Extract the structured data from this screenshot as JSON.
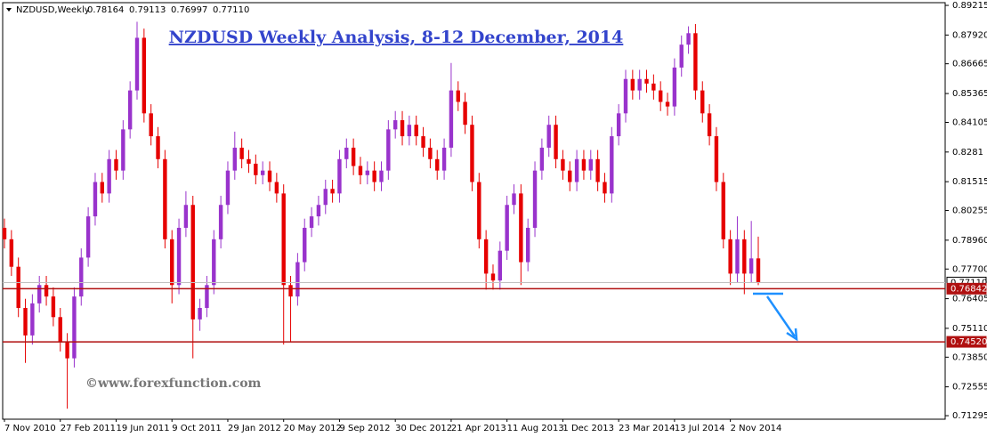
{
  "header": {
    "symbol": "NZDUSD,Weekly",
    "ohlc": [
      "0.78164",
      "0.79113",
      "0.76997",
      "0.77110"
    ]
  },
  "chart_data": {
    "type": "candlestick",
    "title": "NZDUSD Weekly Analysis, 8-12 December, 2014",
    "watermark": "©www.forexfunction.com",
    "up_color": "#9933cc",
    "down_color": "#e60000",
    "categories": [
      "7 Nov 2010",
      null,
      null,
      null,
      null,
      null,
      null,
      null,
      "27 Feb 2011",
      null,
      null,
      null,
      null,
      null,
      null,
      null,
      "19 Jun 2011",
      null,
      null,
      null,
      null,
      null,
      null,
      null,
      "9 Oct 2011",
      null,
      null,
      null,
      null,
      null,
      null,
      null,
      "29 Jan 2012",
      null,
      null,
      null,
      null,
      null,
      null,
      null,
      "20 May 2012",
      null,
      null,
      null,
      null,
      null,
      null,
      null,
      "9 Sep 2012",
      null,
      null,
      null,
      null,
      null,
      null,
      null,
      "30 Dec 2012",
      null,
      null,
      null,
      null,
      null,
      null,
      null,
      "21 Apr 2013",
      null,
      null,
      null,
      null,
      null,
      null,
      null,
      "11 Aug 2013",
      null,
      null,
      null,
      null,
      null,
      null,
      null,
      "1 Dec 2013",
      null,
      null,
      null,
      null,
      null,
      null,
      null,
      "23 Mar 2014",
      null,
      null,
      null,
      null,
      null,
      null,
      null,
      "13 Jul 2014",
      null,
      null,
      null,
      null,
      null,
      null,
      null,
      "2 Nov 2014",
      null,
      null,
      null,
      null
    ],
    "open": [
      0.795,
      0.79,
      0.778,
      0.76,
      0.748,
      0.762,
      0.77,
      0.765,
      0.756,
      0.745,
      0.738,
      0.765,
      0.782,
      0.8,
      0.815,
      0.81,
      0.825,
      0.82,
      0.838,
      0.855,
      0.878,
      0.845,
      0.835,
      0.825,
      0.79,
      0.77,
      0.795,
      0.805,
      0.755,
      0.76,
      0.77,
      0.79,
      0.805,
      0.82,
      0.83,
      0.825,
      0.823,
      0.818,
      0.82,
      0.815,
      0.81,
      0.77,
      0.765,
      0.78,
      0.795,
      0.8,
      0.805,
      0.812,
      0.81,
      0.825,
      0.83,
      0.822,
      0.818,
      0.82,
      0.815,
      0.82,
      0.838,
      0.842,
      0.835,
      0.84,
      0.835,
      0.83,
      0.825,
      0.82,
      0.83,
      0.855,
      0.85,
      0.84,
      0.815,
      0.79,
      0.775,
      0.772,
      0.785,
      0.805,
      0.81,
      0.78,
      0.795,
      0.82,
      0.83,
      0.84,
      0.825,
      0.82,
      0.815,
      0.825,
      0.82,
      0.825,
      0.815,
      0.81,
      0.835,
      0.845,
      0.86,
      0.855,
      0.86,
      0.858,
      0.855,
      0.85,
      0.848,
      0.865,
      0.875,
      0.88,
      0.855,
      0.845,
      0.835,
      0.815,
      0.79,
      0.775,
      0.79,
      0.775,
      0.78164
    ],
    "high": [
      0.799,
      0.794,
      0.782,
      0.764,
      0.766,
      0.774,
      0.774,
      0.769,
      0.76,
      0.749,
      0.769,
      0.786,
      0.804,
      0.819,
      0.819,
      0.829,
      0.829,
      0.842,
      0.859,
      0.885,
      0.882,
      0.849,
      0.839,
      0.829,
      0.794,
      0.799,
      0.811,
      0.809,
      0.764,
      0.774,
      0.794,
      0.809,
      0.824,
      0.837,
      0.834,
      0.829,
      0.827,
      0.824,
      0.824,
      0.819,
      0.814,
      0.774,
      0.784,
      0.799,
      0.804,
      0.809,
      0.816,
      0.816,
      0.829,
      0.834,
      0.834,
      0.826,
      0.824,
      0.824,
      0.824,
      0.842,
      0.846,
      0.846,
      0.844,
      0.844,
      0.839,
      0.834,
      0.829,
      0.834,
      0.867,
      0.859,
      0.854,
      0.844,
      0.819,
      0.794,
      0.779,
      0.789,
      0.809,
      0.814,
      0.814,
      0.799,
      0.824,
      0.834,
      0.844,
      0.844,
      0.829,
      0.824,
      0.829,
      0.829,
      0.829,
      0.829,
      0.819,
      0.839,
      0.849,
      0.864,
      0.864,
      0.864,
      0.864,
      0.862,
      0.859,
      0.854,
      0.869,
      0.879,
      0.883,
      0.884,
      0.859,
      0.849,
      0.839,
      0.819,
      0.794,
      0.8,
      0.794,
      0.798,
      0.79113
    ],
    "low": [
      0.786,
      0.774,
      0.756,
      0.736,
      0.744,
      0.758,
      0.761,
      0.752,
      0.741,
      0.716,
      0.734,
      0.761,
      0.778,
      0.796,
      0.806,
      0.806,
      0.816,
      0.816,
      0.834,
      0.851,
      0.841,
      0.831,
      0.821,
      0.786,
      0.762,
      0.766,
      0.791,
      0.738,
      0.75,
      0.756,
      0.766,
      0.786,
      0.801,
      0.816,
      0.821,
      0.819,
      0.814,
      0.814,
      0.811,
      0.806,
      0.744,
      0.745,
      0.761,
      0.776,
      0.791,
      0.796,
      0.801,
      0.806,
      0.806,
      0.821,
      0.818,
      0.814,
      0.814,
      0.811,
      0.811,
      0.816,
      0.834,
      0.831,
      0.831,
      0.831,
      0.826,
      0.821,
      0.816,
      0.816,
      0.826,
      0.846,
      0.836,
      0.811,
      0.786,
      0.768,
      0.768,
      0.768,
      0.781,
      0.801,
      0.77,
      0.776,
      0.791,
      0.816,
      0.826,
      0.821,
      0.816,
      0.811,
      0.811,
      0.816,
      0.816,
      0.811,
      0.806,
      0.806,
      0.831,
      0.841,
      0.851,
      0.851,
      0.854,
      0.851,
      0.846,
      0.844,
      0.844,
      0.861,
      0.871,
      0.851,
      0.841,
      0.831,
      0.811,
      0.786,
      0.77,
      0.771,
      0.766,
      0.771,
      0.76997
    ],
    "close": [
      0.79,
      0.778,
      0.76,
      0.748,
      0.762,
      0.77,
      0.765,
      0.756,
      0.745,
      0.738,
      0.765,
      0.782,
      0.8,
      0.815,
      0.81,
      0.825,
      0.82,
      0.838,
      0.855,
      0.878,
      0.845,
      0.835,
      0.825,
      0.79,
      0.77,
      0.795,
      0.805,
      0.755,
      0.76,
      0.77,
      0.79,
      0.805,
      0.82,
      0.83,
      0.825,
      0.823,
      0.818,
      0.82,
      0.815,
      0.81,
      0.77,
      0.765,
      0.78,
      0.795,
      0.8,
      0.805,
      0.812,
      0.81,
      0.825,
      0.83,
      0.822,
      0.818,
      0.82,
      0.815,
      0.82,
      0.838,
      0.842,
      0.835,
      0.84,
      0.835,
      0.83,
      0.825,
      0.82,
      0.83,
      0.855,
      0.85,
      0.84,
      0.815,
      0.79,
      0.775,
      0.772,
      0.785,
      0.805,
      0.81,
      0.78,
      0.795,
      0.82,
      0.83,
      0.84,
      0.825,
      0.82,
      0.815,
      0.825,
      0.82,
      0.825,
      0.815,
      0.81,
      0.835,
      0.845,
      0.86,
      0.855,
      0.86,
      0.858,
      0.855,
      0.85,
      0.848,
      0.865,
      0.875,
      0.88,
      0.855,
      0.845,
      0.835,
      0.815,
      0.79,
      0.775,
      0.79,
      0.775,
      0.78164,
      0.7711
    ],
    "ylim": [
      0.7118,
      0.8945
    ],
    "yticks": [
      0.89215,
      {
        "value": 0.8792,
        "label": "0.87920"
      },
      0.86665,
      0.85365,
      0.84105,
      0.8281,
      0.81515,
      0.80255,
      {
        "value": 0.7896,
        "label": "0.78960"
      },
      {
        "value": 0.777,
        "label": "0.77700"
      },
      0.76405,
      {
        "value": 0.7511,
        "label": "0.75110"
      },
      {
        "value": 0.7385,
        "label": "0.73850"
      },
      0.72555,
      0.71295
    ],
    "levels": [
      {
        "value": 0.7711,
        "label": "0.77110",
        "color": "#c0c0c0"
      },
      {
        "value": 0.76842,
        "color": "#b01010"
      },
      {
        "value": 0.7452,
        "label": "0.74520",
        "color": "#b01010"
      }
    ]
  }
}
